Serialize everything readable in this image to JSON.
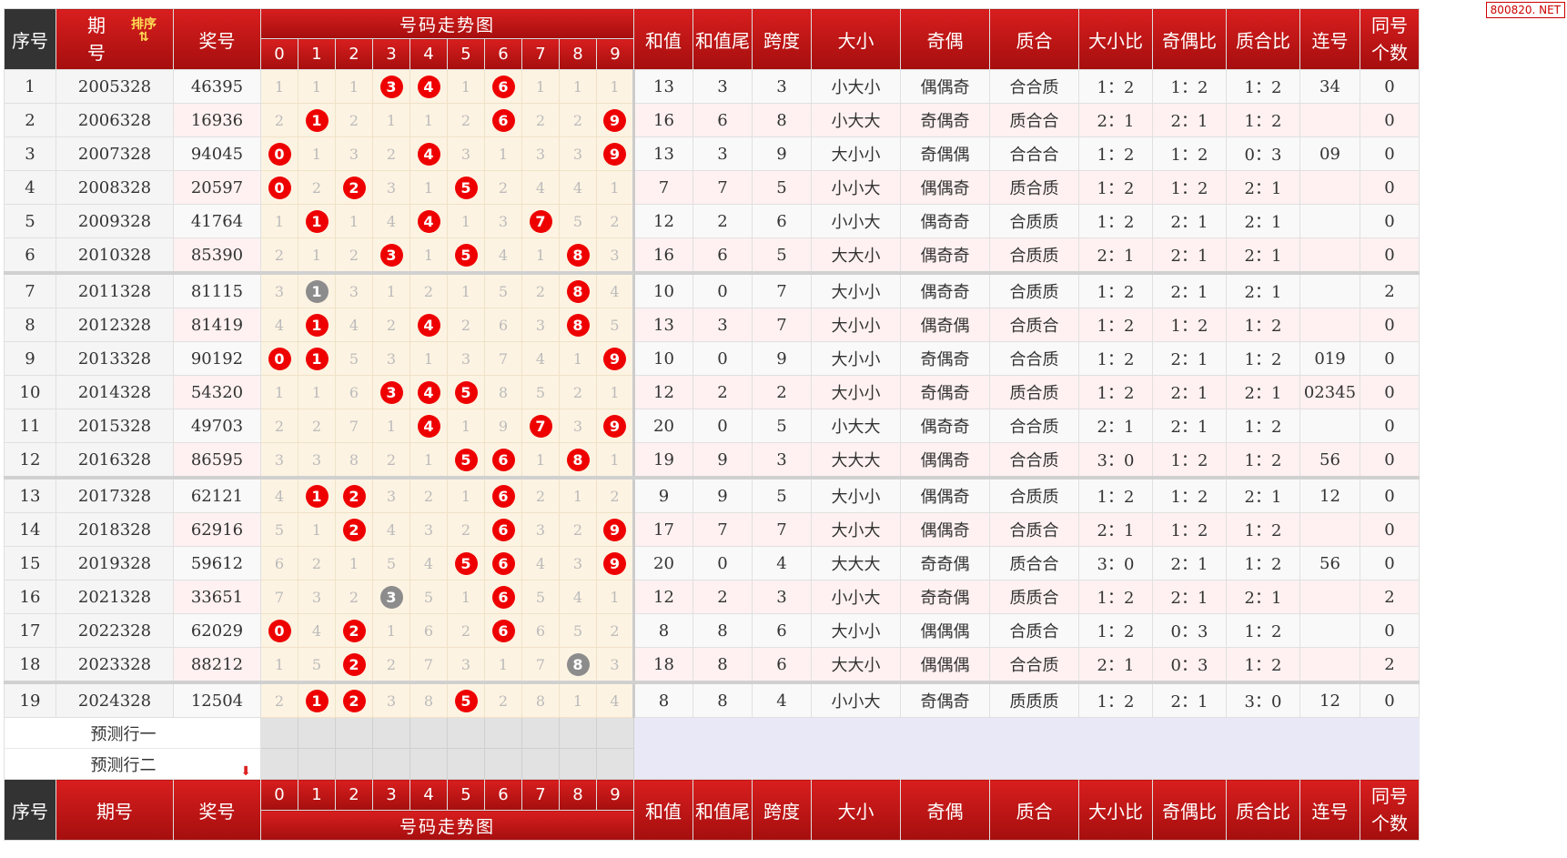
{
  "watermark": "800820. NET",
  "header": {
    "seq": "序号",
    "period": "期\n号",
    "sort_label": "排序",
    "prize": "奖号",
    "trend": "号码走势图",
    "digits": [
      "0",
      "1",
      "2",
      "3",
      "4",
      "5",
      "6",
      "7",
      "8",
      "9"
    ],
    "sum": "和值",
    "sum_tail": "和值尾",
    "span": "跨度",
    "big_small": "大小",
    "odd_even": "奇偶",
    "prime_comp": "质合",
    "bs_ratio": "大小比",
    "oe_ratio": "奇偶比",
    "pc_ratio": "质合比",
    "consecutive": "连号",
    "same_count": "同号\n个数"
  },
  "footer": {
    "seq": "序号",
    "period": "期号",
    "prize": "奖号",
    "trend": "号码走势图",
    "sum": "和值",
    "sum_tail": "和值尾",
    "span": "跨度",
    "big_small": "大小",
    "odd_even": "奇偶",
    "prime_comp": "质合",
    "bs_ratio": "大小比",
    "oe_ratio": "奇偶比",
    "pc_ratio": "质合比",
    "consecutive": "连号",
    "same_count": "同号\n个数"
  },
  "prediction_rows": [
    "预测行一",
    "预测行二"
  ],
  "ball_colors": {
    "hit": "#e00000",
    "repeat": "#8c8c8c"
  },
  "rows": [
    {
      "seq": "1",
      "period": "2005328",
      "prize": "46395",
      "digits": [
        "1",
        "1",
        "1",
        "3",
        "4",
        "1",
        "6",
        "1",
        "1",
        "1"
      ],
      "hits": [
        3,
        4,
        6
      ],
      "rep": [],
      "sum": "13",
      "tail": "3",
      "span": "3",
      "bs": "小大小",
      "oe": "偶偶奇",
      "pc": "合合质",
      "bsr": "1：2",
      "oer": "1：2",
      "pcr": "1：2",
      "cons": "34",
      "same": "0"
    },
    {
      "seq": "2",
      "period": "2006328",
      "prize": "16936",
      "digits": [
        "2",
        "1",
        "2",
        "1",
        "1",
        "2",
        "6",
        "2",
        "2",
        "9"
      ],
      "hits": [
        1,
        6,
        9
      ],
      "rep": [],
      "sum": "16",
      "tail": "6",
      "span": "8",
      "bs": "小大大",
      "oe": "奇偶奇",
      "pc": "质合合",
      "bsr": "2：1",
      "oer": "2：1",
      "pcr": "1：2",
      "cons": "",
      "same": "0"
    },
    {
      "seq": "3",
      "period": "2007328",
      "prize": "94045",
      "digits": [
        "0",
        "1",
        "3",
        "2",
        "4",
        "3",
        "1",
        "3",
        "3",
        "9"
      ],
      "hits": [
        0,
        4,
        9
      ],
      "rep": [],
      "sum": "13",
      "tail": "3",
      "span": "9",
      "bs": "大小小",
      "oe": "奇偶偶",
      "pc": "合合合",
      "bsr": "1：2",
      "oer": "1：2",
      "pcr": "0：3",
      "cons": "09",
      "same": "0"
    },
    {
      "seq": "4",
      "period": "2008328",
      "prize": "20597",
      "digits": [
        "0",
        "2",
        "2",
        "3",
        "1",
        "5",
        "2",
        "4",
        "4",
        "1"
      ],
      "hits": [
        0,
        2,
        5
      ],
      "rep": [],
      "sum": "7",
      "tail": "7",
      "span": "5",
      "bs": "小小大",
      "oe": "偶偶奇",
      "pc": "质合质",
      "bsr": "1：2",
      "oer": "1：2",
      "pcr": "2：1",
      "cons": "",
      "same": "0"
    },
    {
      "seq": "5",
      "period": "2009328",
      "prize": "41764",
      "digits": [
        "1",
        "1",
        "1",
        "4",
        "4",
        "1",
        "3",
        "7",
        "5",
        "2"
      ],
      "hits": [
        1,
        4,
        7
      ],
      "rep": [],
      "sum": "12",
      "tail": "2",
      "span": "6",
      "bs": "小小大",
      "oe": "偶奇奇",
      "pc": "合质质",
      "bsr": "1：2",
      "oer": "2：1",
      "pcr": "2：1",
      "cons": "",
      "same": "0"
    },
    {
      "seq": "6",
      "period": "2010328",
      "prize": "85390",
      "digits": [
        "2",
        "1",
        "2",
        "3",
        "1",
        "5",
        "4",
        "1",
        "8",
        "3"
      ],
      "hits": [
        3,
        5,
        8
      ],
      "rep": [],
      "sum": "16",
      "tail": "6",
      "span": "5",
      "bs": "大大小",
      "oe": "偶奇奇",
      "pc": "合质质",
      "bsr": "2：1",
      "oer": "2：1",
      "pcr": "2：1",
      "cons": "",
      "same": "0"
    },
    {
      "seq": "7",
      "period": "2011328",
      "prize": "81115",
      "digits": [
        "3",
        "1",
        "3",
        "1",
        "2",
        "1",
        "5",
        "2",
        "8",
        "4"
      ],
      "hits": [
        8
      ],
      "rep": [
        1
      ],
      "sum": "10",
      "tail": "0",
      "span": "7",
      "bs": "大小小",
      "oe": "偶奇奇",
      "pc": "合质质",
      "bsr": "1：2",
      "oer": "2：1",
      "pcr": "2：1",
      "cons": "",
      "same": "2"
    },
    {
      "seq": "8",
      "period": "2012328",
      "prize": "81419",
      "digits": [
        "4",
        "1",
        "4",
        "2",
        "4",
        "2",
        "6",
        "3",
        "8",
        "5"
      ],
      "hits": [
        1,
        4,
        8
      ],
      "rep": [],
      "sum": "13",
      "tail": "3",
      "span": "7",
      "bs": "大小小",
      "oe": "偶奇偶",
      "pc": "合质合",
      "bsr": "1：2",
      "oer": "1：2",
      "pcr": "1：2",
      "cons": "",
      "same": "0"
    },
    {
      "seq": "9",
      "period": "2013328",
      "prize": "90192",
      "digits": [
        "0",
        "1",
        "5",
        "3",
        "1",
        "3",
        "7",
        "4",
        "1",
        "9"
      ],
      "hits": [
        0,
        1,
        9
      ],
      "rep": [],
      "sum": "10",
      "tail": "0",
      "span": "9",
      "bs": "大小小",
      "oe": "奇偶奇",
      "pc": "合合质",
      "bsr": "1：2",
      "oer": "2：1",
      "pcr": "1：2",
      "cons": "019",
      "same": "0"
    },
    {
      "seq": "10",
      "period": "2014328",
      "prize": "54320",
      "digits": [
        "1",
        "1",
        "6",
        "3",
        "4",
        "5",
        "8",
        "5",
        "2",
        "1"
      ],
      "hits": [
        3,
        4,
        5
      ],
      "rep": [],
      "sum": "12",
      "tail": "2",
      "span": "2",
      "bs": "大小小",
      "oe": "奇偶奇",
      "pc": "质合质",
      "bsr": "1：2",
      "oer": "2：1",
      "pcr": "2：1",
      "cons": "02345",
      "same": "0"
    },
    {
      "seq": "11",
      "period": "2015328",
      "prize": "49703",
      "digits": [
        "2",
        "2",
        "7",
        "1",
        "4",
        "1",
        "9",
        "7",
        "3",
        "9"
      ],
      "hits": [
        4,
        7,
        9
      ],
      "rep": [],
      "sum": "20",
      "tail": "0",
      "span": "5",
      "bs": "小大大",
      "oe": "偶奇奇",
      "pc": "合合质",
      "bsr": "2：1",
      "oer": "2：1",
      "pcr": "1：2",
      "cons": "",
      "same": "0"
    },
    {
      "seq": "12",
      "period": "2016328",
      "prize": "86595",
      "digits": [
        "3",
        "3",
        "8",
        "2",
        "1",
        "5",
        "6",
        "1",
        "8",
        "1"
      ],
      "hits": [
        5,
        6,
        8
      ],
      "rep": [],
      "sum": "19",
      "tail": "9",
      "span": "3",
      "bs": "大大大",
      "oe": "偶偶奇",
      "pc": "合合质",
      "bsr": "3：0",
      "oer": "1：2",
      "pcr": "1：2",
      "cons": "56",
      "same": "0"
    },
    {
      "seq": "13",
      "period": "2017328",
      "prize": "62121",
      "digits": [
        "4",
        "1",
        "2",
        "3",
        "2",
        "1",
        "6",
        "2",
        "1",
        "2"
      ],
      "hits": [
        1,
        2,
        6
      ],
      "rep": [],
      "sum": "9",
      "tail": "9",
      "span": "5",
      "bs": "大小小",
      "oe": "偶偶奇",
      "pc": "合质质",
      "bsr": "1：2",
      "oer": "1：2",
      "pcr": "2：1",
      "cons": "12",
      "same": "0"
    },
    {
      "seq": "14",
      "period": "2018328",
      "prize": "62916",
      "digits": [
        "5",
        "1",
        "2",
        "4",
        "3",
        "2",
        "6",
        "3",
        "2",
        "9"
      ],
      "hits": [
        2,
        6,
        9
      ],
      "rep": [],
      "sum": "17",
      "tail": "7",
      "span": "7",
      "bs": "大小大",
      "oe": "偶偶奇",
      "pc": "合质合",
      "bsr": "2：1",
      "oer": "1：2",
      "pcr": "1：2",
      "cons": "",
      "same": "0"
    },
    {
      "seq": "15",
      "period": "2019328",
      "prize": "59612",
      "digits": [
        "6",
        "2",
        "1",
        "5",
        "4",
        "5",
        "6",
        "4",
        "3",
        "9"
      ],
      "hits": [
        5,
        6,
        9
      ],
      "rep": [],
      "sum": "20",
      "tail": "0",
      "span": "4",
      "bs": "大大大",
      "oe": "奇奇偶",
      "pc": "质合合",
      "bsr": "3：0",
      "oer": "2：1",
      "pcr": "1：2",
      "cons": "56",
      "same": "0"
    },
    {
      "seq": "16",
      "period": "2021328",
      "prize": "33651",
      "digits": [
        "7",
        "3",
        "2",
        "3",
        "5",
        "1",
        "6",
        "5",
        "4",
        "1"
      ],
      "hits": [
        6
      ],
      "rep": [
        3
      ],
      "sum": "12",
      "tail": "2",
      "span": "3",
      "bs": "小小大",
      "oe": "奇奇偶",
      "pc": "质质合",
      "bsr": "1：2",
      "oer": "2：1",
      "pcr": "2：1",
      "cons": "",
      "same": "2"
    },
    {
      "seq": "17",
      "period": "2022328",
      "prize": "62029",
      "digits": [
        "0",
        "4",
        "2",
        "1",
        "6",
        "2",
        "6",
        "6",
        "5",
        "2"
      ],
      "hits": [
        0,
        2,
        6
      ],
      "rep": [],
      "sum": "8",
      "tail": "8",
      "span": "6",
      "bs": "大小小",
      "oe": "偶偶偶",
      "pc": "合质合",
      "bsr": "1：2",
      "oer": "0：3",
      "pcr": "1：2",
      "cons": "",
      "same": "0"
    },
    {
      "seq": "18",
      "period": "2023328",
      "prize": "88212",
      "digits": [
        "1",
        "5",
        "2",
        "2",
        "7",
        "3",
        "1",
        "7",
        "8",
        "3"
      ],
      "hits": [
        2
      ],
      "rep": [
        8
      ],
      "sum": "18",
      "tail": "8",
      "span": "6",
      "bs": "大大小",
      "oe": "偶偶偶",
      "pc": "合合质",
      "bsr": "2：1",
      "oer": "0：3",
      "pcr": "1：2",
      "cons": "",
      "same": "2"
    },
    {
      "seq": "19",
      "period": "2024328",
      "prize": "12504",
      "digits": [
        "2",
        "1",
        "2",
        "3",
        "8",
        "5",
        "2",
        "8",
        "1",
        "4"
      ],
      "hits": [
        1,
        2,
        5
      ],
      "rep": [],
      "sum": "8",
      "tail": "8",
      "span": "4",
      "bs": "小小大",
      "oe": "奇偶奇",
      "pc": "质质质",
      "bsr": "1：2",
      "oer": "2：1",
      "pcr": "3：0",
      "cons": "12",
      "same": "0"
    }
  ]
}
